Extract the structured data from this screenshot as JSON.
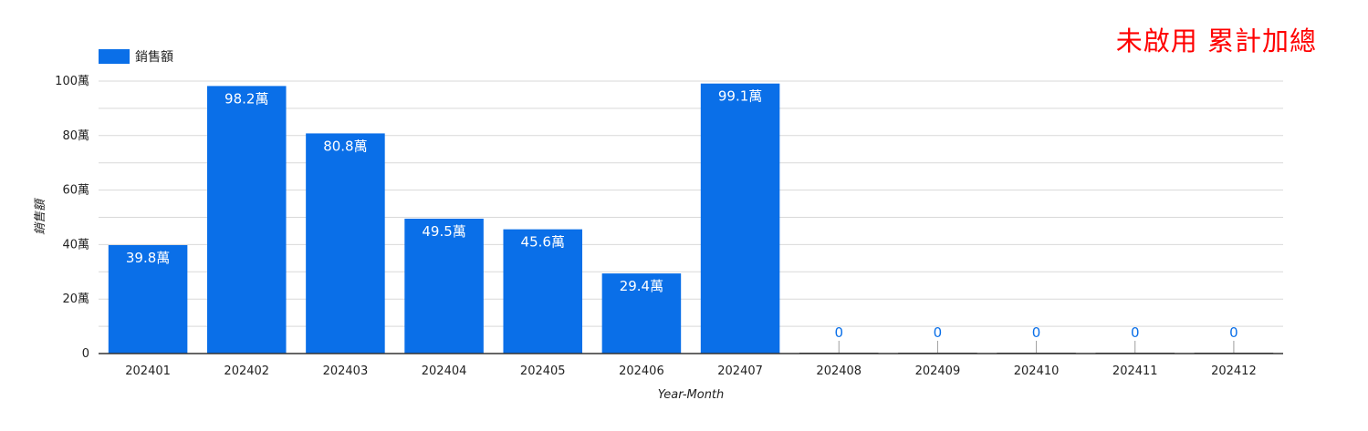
{
  "annotation": "未啟用 累計加總",
  "chart_data": {
    "type": "bar",
    "title": "",
    "xlabel": "Year-Month",
    "ylabel": "銷售額",
    "categories": [
      "202401",
      "202402",
      "202403",
      "202404",
      "202405",
      "202406",
      "202407",
      "202408",
      "202409",
      "202410",
      "202411",
      "202412"
    ],
    "series": [
      {
        "name": "銷售額",
        "values": [
          398000,
          982000,
          808000,
          495000,
          456000,
          294000,
          991000,
          0,
          0,
          0,
          0,
          0
        ],
        "data_labels": [
          "39.8萬",
          "98.2萬",
          "80.8萬",
          "49.5萬",
          "45.6萬",
          "29.4萬",
          "99.1萬",
          "0",
          "0",
          "0",
          "0",
          "0"
        ]
      }
    ],
    "ylim": [
      0,
      1000000
    ],
    "yticks": [
      0,
      200000,
      400000,
      600000,
      800000,
      1000000
    ],
    "ytick_labels": [
      "0",
      "20萬",
      "40萬",
      "60萬",
      "80萬",
      "100萬"
    ],
    "grid": true,
    "legend_position": "top-left",
    "colors": {
      "bar": "#0a6fe8",
      "zero_label": "#0a6fe8",
      "bar_label": "#ffffff",
      "grid": "#d9d9d9",
      "annotation": "#ff0000"
    }
  }
}
